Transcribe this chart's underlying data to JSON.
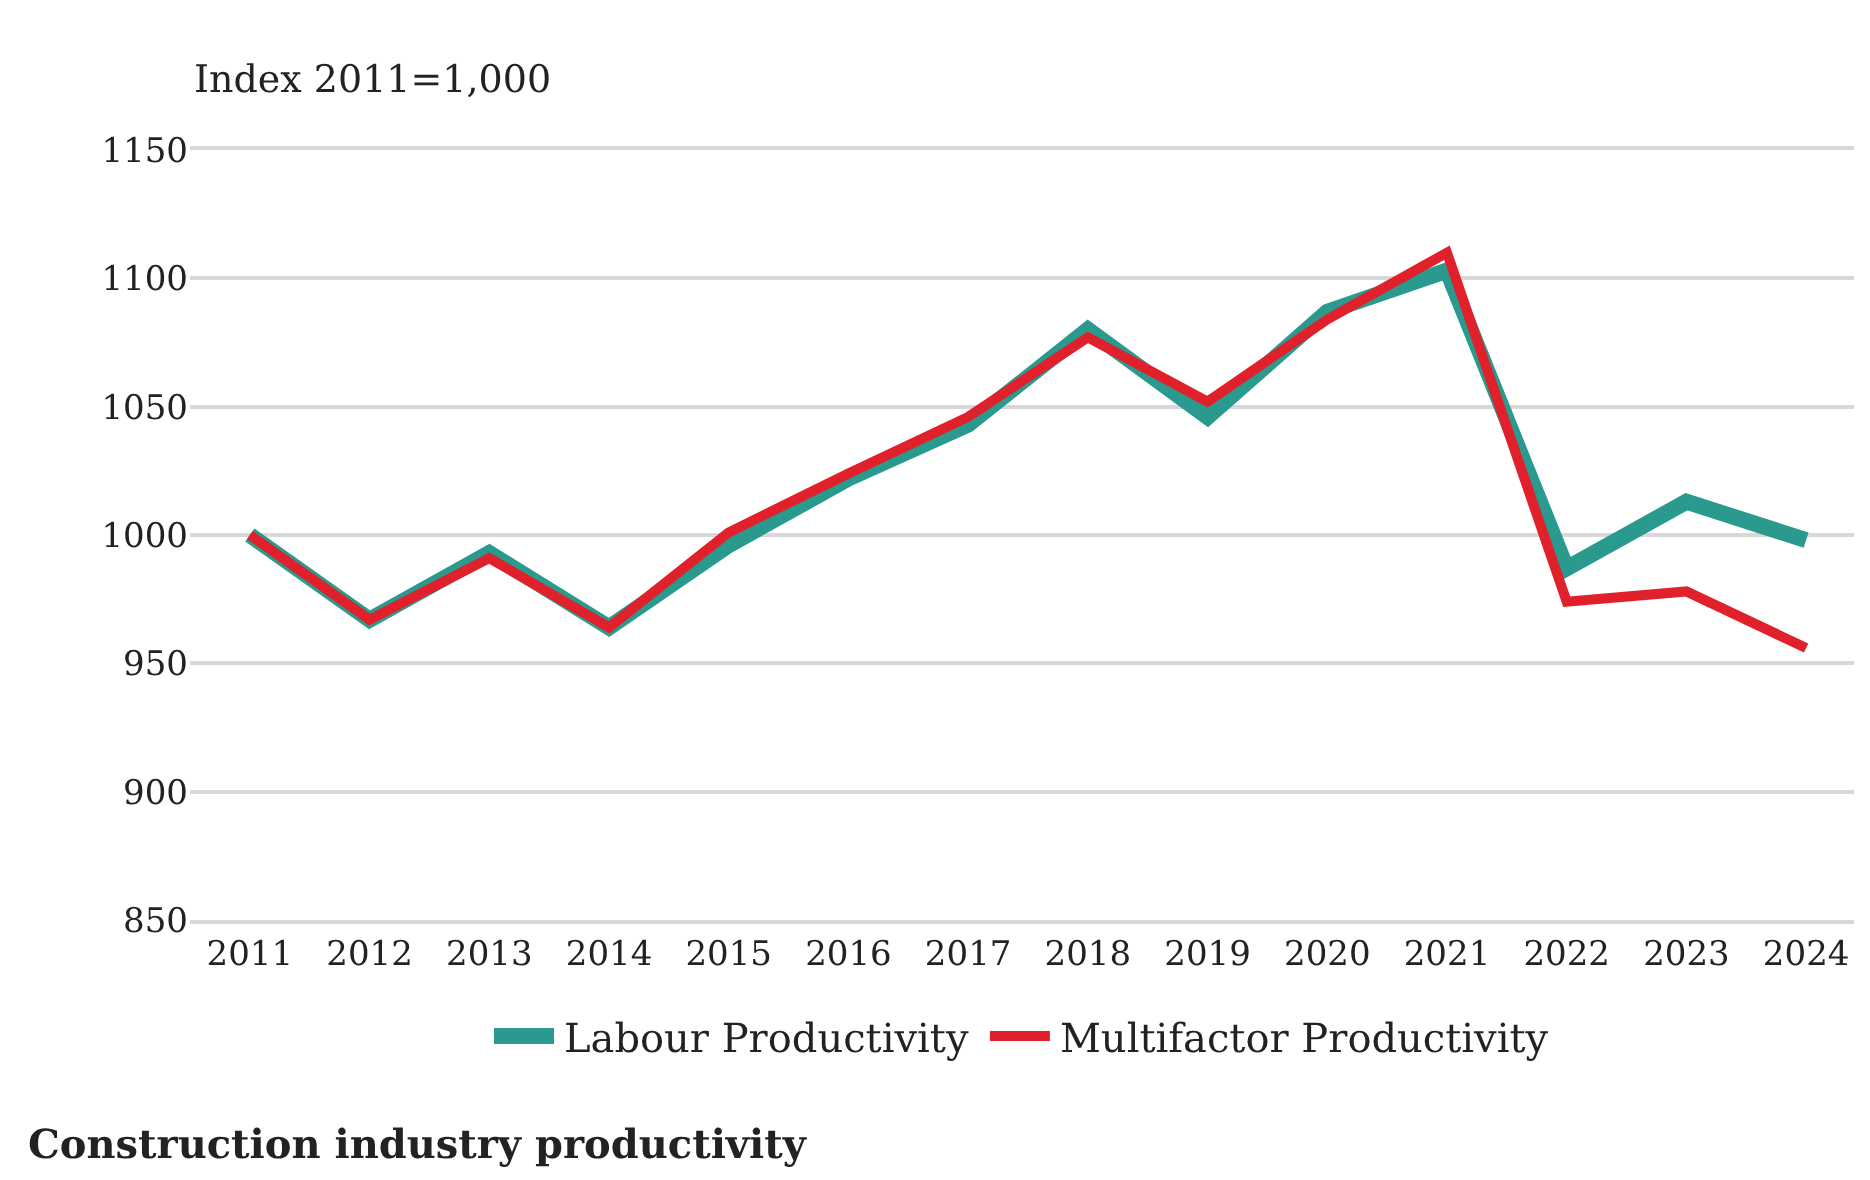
{
  "chart_data": {
    "type": "line",
    "title": "Construction industry productivity",
    "ylabel": "Index 2011=1,000",
    "categories": [
      "2011",
      "2012",
      "2013",
      "2014",
      "2015",
      "2016",
      "2017",
      "2018",
      "2019",
      "2020",
      "2021",
      "2022",
      "2023",
      "2024"
    ],
    "series": [
      {
        "name": "Labour Productivity",
        "color": "#2a9a8f",
        "values": [
          1000,
          967,
          993,
          964,
          996,
          1022,
          1043,
          1080,
          1046,
          1087,
          1103,
          987,
          1013,
          998
        ]
      },
      {
        "name": "Multifactor Productivity",
        "color": "#e0202a",
        "values": [
          1000,
          967,
          991,
          964,
          1001,
          1024,
          1046,
          1077,
          1052,
          1084,
          1110,
          974,
          978,
          956
        ]
      }
    ],
    "ylim": [
      850,
      1150
    ],
    "yticks": [
      850,
      900,
      950,
      1000,
      1050,
      1100,
      1150
    ],
    "grid": "y",
    "legend": "bottom",
    "marker": "none",
    "line_style": "solid"
  }
}
